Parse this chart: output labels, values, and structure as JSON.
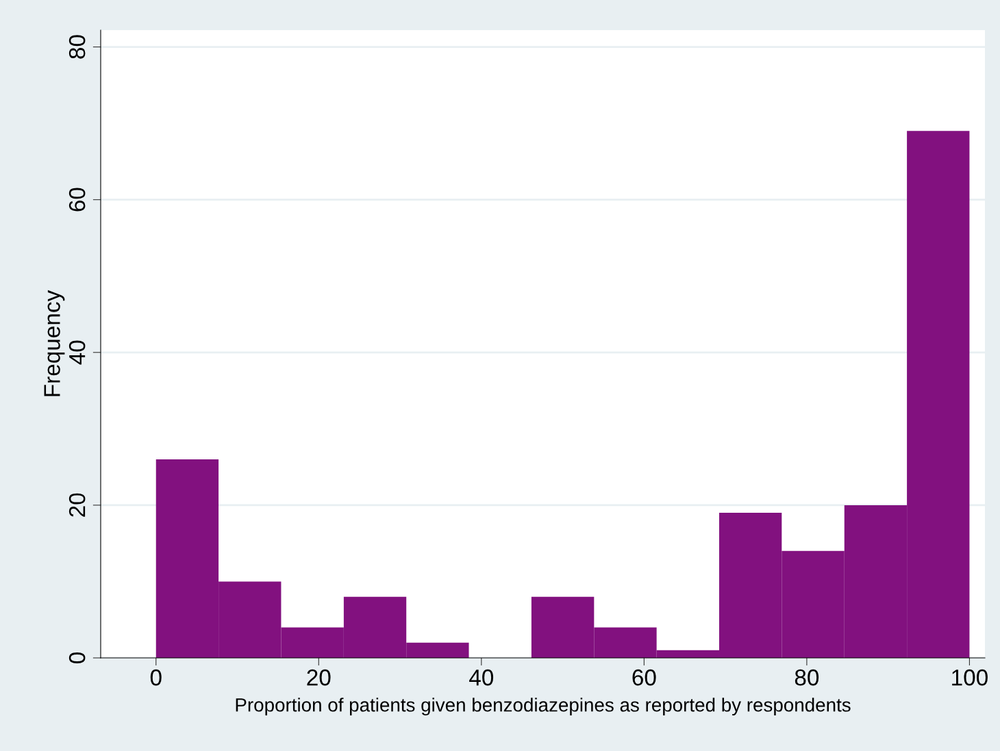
{
  "chart_data": {
    "type": "histogram",
    "xlabel": "Proportion of patients given benzodiazepines as reported by respondents",
    "ylabel": "Frequency",
    "bins": [
      0,
      7.69,
      15.38,
      23.08,
      30.77,
      38.46,
      46.15,
      53.85,
      61.54,
      69.23,
      76.92,
      84.62,
      92.31,
      100
    ],
    "values": [
      26,
      10,
      4,
      8,
      2,
      0,
      8,
      4,
      1,
      19,
      14,
      20,
      69
    ],
    "color": "#82117f",
    "xlim": [
      -6.8,
      101.9
    ],
    "xticks": [
      0,
      20,
      40,
      60,
      80,
      100
    ],
    "ylim": [
      0,
      82.2
    ],
    "yticks": [
      0,
      20,
      40,
      60,
      80
    ],
    "grid": "y"
  }
}
